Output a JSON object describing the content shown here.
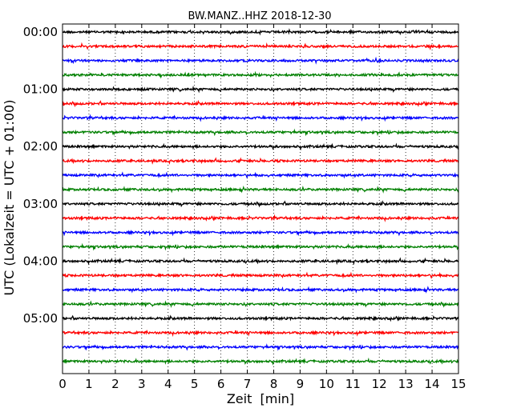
{
  "chart_data": {
    "type": "line",
    "title": "BW.MANZ..HHZ 2018-12-30",
    "xlabel": "Zeit  [min]",
    "ylabel": "UTC (Lokalzeit = UTC + 01:00)",
    "xlim": [
      0,
      15
    ],
    "x_ticks": [
      0,
      1,
      2,
      3,
      4,
      5,
      6,
      7,
      8,
      9,
      10,
      11,
      12,
      13,
      14,
      15
    ],
    "y_tick_labels": [
      "00:00",
      "01:00",
      "02:00",
      "03:00",
      "04:00",
      "05:00"
    ],
    "grid": "vertical dotted at each minute",
    "trace_colors": [
      "#000000",
      "#ff0000",
      "#0000ff",
      "#008000"
    ],
    "traces_count": 24,
    "trace_interval_minutes": 15,
    "series": [
      {
        "start": "00:00",
        "color": "#000000"
      },
      {
        "start": "00:15",
        "color": "#ff0000"
      },
      {
        "start": "00:30",
        "color": "#0000ff"
      },
      {
        "start": "00:45",
        "color": "#008000"
      },
      {
        "start": "01:00",
        "color": "#000000"
      },
      {
        "start": "01:15",
        "color": "#ff0000"
      },
      {
        "start": "01:30",
        "color": "#0000ff"
      },
      {
        "start": "01:45",
        "color": "#008000"
      },
      {
        "start": "02:00",
        "color": "#000000"
      },
      {
        "start": "02:15",
        "color": "#ff0000"
      },
      {
        "start": "02:30",
        "color": "#0000ff"
      },
      {
        "start": "02:45",
        "color": "#008000"
      },
      {
        "start": "03:00",
        "color": "#000000"
      },
      {
        "start": "03:15",
        "color": "#ff0000"
      },
      {
        "start": "03:30",
        "color": "#0000ff"
      },
      {
        "start": "03:45",
        "color": "#008000"
      },
      {
        "start": "04:00",
        "color": "#000000"
      },
      {
        "start": "04:15",
        "color": "#ff0000"
      },
      {
        "start": "04:30",
        "color": "#0000ff"
      },
      {
        "start": "04:45",
        "color": "#008000"
      },
      {
        "start": "05:00",
        "color": "#000000"
      },
      {
        "start": "05:15",
        "color": "#ff0000"
      },
      {
        "start": "05:30",
        "color": "#0000ff"
      },
      {
        "start": "05:45",
        "color": "#008000"
      }
    ]
  }
}
